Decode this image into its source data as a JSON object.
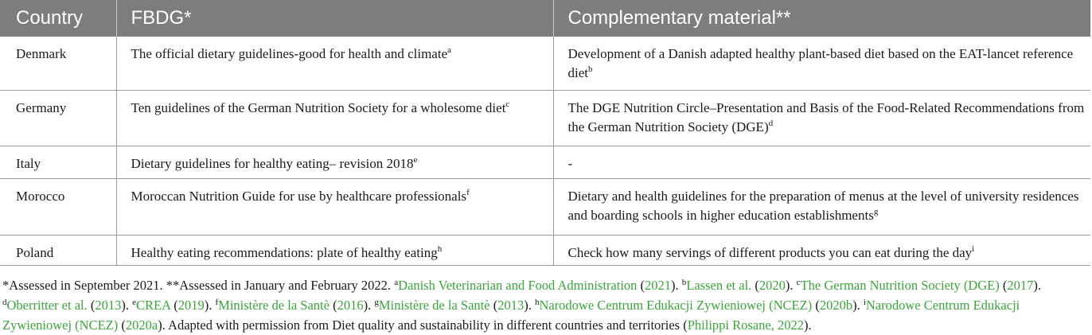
{
  "table": {
    "headers": {
      "country": "Country",
      "fbdg": "FBDG*",
      "complementary": "Complementary material**"
    },
    "rows": [
      {
        "country": "Denmark",
        "fbdg": "The official dietary guidelines-good for health and climate",
        "fbdg_sup": "a",
        "comp": "Development of a Danish adapted healthy plant-based diet based on the EAT-lancet reference diet",
        "comp_sup": "b"
      },
      {
        "country": "Germany",
        "fbdg": "Ten guidelines of the German Nutrition Society for a wholesome diet",
        "fbdg_sup": "c",
        "comp": "The DGE Nutrition Circle–Presentation and Basis of the Food-Related Recommendations from the German Nutrition Society (DGE)",
        "comp_sup": "d"
      },
      {
        "country": "Italy",
        "fbdg": "Dietary guidelines for healthy eating– revision 2018",
        "fbdg_sup": "e",
        "comp": "-",
        "comp_sup": ""
      },
      {
        "country": "Morocco",
        "fbdg": "Moroccan Nutrition Guide for use by healthcare professionals",
        "fbdg_sup": "f",
        "comp": "Dietary and health guidelines for the preparation of menus at the level of university residences and boarding schools in higher education establishments",
        "comp_sup": "g"
      },
      {
        "country": "Poland",
        "fbdg": "Healthy eating recommendations: plate of healthy eating",
        "fbdg_sup": "h",
        "comp": "Check how many servings of different products you can eat during the day",
        "comp_sup": "i"
      }
    ]
  },
  "footnote": {
    "assessed1": "*Assessed in September 2021. **Assessed in January and February 2022. ",
    "a_sup": "a",
    "a_ref": "Danish Veterinarian and Food Administration",
    "a_open": " (",
    "a_year": "2021",
    "a_close": "). ",
    "b_sup": "b",
    "b_ref": "Lassen et al.",
    "b_open": " (",
    "b_year": "2020",
    "b_close": "). ",
    "c_sup": "c",
    "c_ref": "The German Nutrition Society (DGE)",
    "c_open": " (",
    "c_year": "2017",
    "c_close": "). ",
    "d_sup": "d",
    "d_ref": "Oberritter et al.",
    "d_open": " (",
    "d_year": "2013",
    "d_close": "). ",
    "e_sup": "e",
    "e_ref": "CREA",
    "e_open": " (",
    "e_year": "2019",
    "e_close": "). ",
    "f_sup": "f",
    "f_ref": "Ministère de la Santè",
    "f_open": " (",
    "f_year": "2016",
    "f_close": "). ",
    "g_sup": "g",
    "g_ref": "Ministère de la Santè",
    "g_open": " (",
    "g_year": "2013",
    "g_close": "). ",
    "h_sup": "h",
    "h_ref": "Narodowe Centrum Edukacji Zywieniowej (NCEZ)",
    "h_open": " (",
    "h_year": "2020b",
    "h_close": "). ",
    "i_sup": "i",
    "i_ref": "Narodowe Centrum Edukacji Zywieniowej (NCEZ)",
    "i_open": " (",
    "i_year": "2020a",
    "i_close": "). Adapted with permission from Diet quality and sustainability in different countries and territories (",
    "last_ref": "Philippi Rosane, 2022",
    "last_close": ").",
    "link_color": "#3aa63a"
  }
}
